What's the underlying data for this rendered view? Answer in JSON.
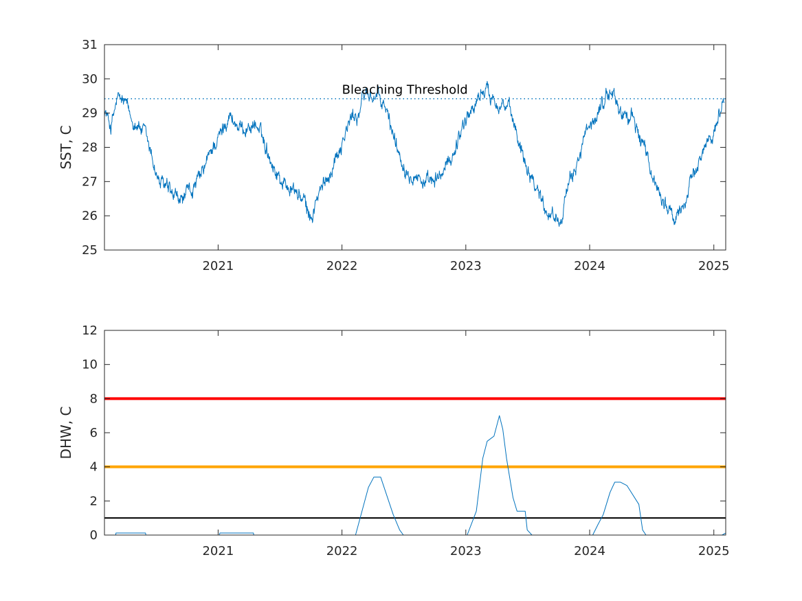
{
  "chart_data": [
    {
      "type": "line",
      "ylabel": "SST, C",
      "ylim": [
        25,
        31
      ],
      "yticks": [
        25,
        26,
        27,
        28,
        29,
        30,
        31
      ],
      "xlim": [
        "2020-02-01",
        "2025-02-05"
      ],
      "xticks": [
        "2021",
        "2022",
        "2023",
        "2024",
        "2025"
      ],
      "grid": false,
      "series_color": "#0072BD",
      "annotations": [
        {
          "text": "Bleaching Threshold",
          "y": 29.42,
          "x_start": "2022-01-01",
          "line_style": "dotted",
          "color": "#0072BD"
        }
      ],
      "series": [
        {
          "x": [
            "2020-02-01",
            "2020-02-20",
            "2020-03-10",
            "2020-04-01",
            "2020-04-20",
            "2020-05-10",
            "2020-06-01",
            "2020-06-20",
            "2020-07-10",
            "2020-08-01",
            "2020-08-20",
            "2020-09-10",
            "2020-10-01",
            "2020-10-20",
            "2020-11-10",
            "2020-12-01",
            "2020-12-20",
            "2021-01-10",
            "2021-02-01",
            "2021-02-20",
            "2021-03-10",
            "2021-04-01",
            "2021-04-20",
            "2021-05-10",
            "2021-06-01",
            "2021-06-20",
            "2021-07-10",
            "2021-08-01",
            "2021-08-20",
            "2021-09-10",
            "2021-10-01",
            "2021-10-20",
            "2021-11-10",
            "2021-12-01",
            "2021-12-20",
            "2022-01-10",
            "2022-02-01",
            "2022-02-20",
            "2022-03-10",
            "2022-04-01",
            "2022-04-20",
            "2022-05-10",
            "2022-06-01",
            "2022-06-20",
            "2022-07-10",
            "2022-08-01",
            "2022-08-20",
            "2022-09-10",
            "2022-10-01",
            "2022-10-20",
            "2022-11-10",
            "2022-12-01",
            "2022-12-20",
            "2023-01-10",
            "2023-02-01",
            "2023-02-20",
            "2023-03-10",
            "2023-04-01",
            "2023-04-20",
            "2023-05-10",
            "2023-06-01",
            "2023-06-20",
            "2023-07-10",
            "2023-08-01",
            "2023-08-20",
            "2023-09-10",
            "2023-10-01",
            "2023-10-20",
            "2023-11-10",
            "2023-12-01",
            "2023-12-20",
            "2024-01-10",
            "2024-02-01",
            "2024-02-20",
            "2024-03-10",
            "2024-04-01",
            "2024-04-20",
            "2024-05-10",
            "2024-06-01",
            "2024-06-20",
            "2024-07-10",
            "2024-08-01",
            "2024-08-20",
            "2024-09-10",
            "2024-10-01",
            "2024-10-20",
            "2024-11-10",
            "2024-12-01",
            "2024-12-20",
            "2025-01-10",
            "2025-02-01"
          ],
          "values": [
            29.1,
            28.6,
            29.4,
            29.3,
            28.8,
            28.7,
            28.3,
            27.7,
            27.0,
            26.8,
            26.5,
            26.4,
            26.6,
            26.8,
            27.1,
            27.6,
            28.1,
            28.4,
            29.0,
            28.7,
            28.5,
            28.6,
            28.7,
            28.3,
            27.8,
            27.3,
            27.0,
            26.8,
            26.7,
            26.4,
            25.9,
            26.5,
            26.9,
            27.4,
            27.9,
            28.4,
            28.9,
            29.0,
            29.6,
            29.5,
            29.4,
            29.1,
            28.4,
            27.8,
            27.4,
            27.3,
            27.1,
            26.9,
            26.9,
            27.2,
            27.5,
            28.0,
            28.6,
            29.0,
            29.3,
            29.7,
            29.6,
            29.4,
            29.3,
            29.0,
            28.4,
            27.8,
            27.3,
            26.8,
            26.3,
            26.1,
            25.9,
            26.4,
            27.1,
            27.8,
            28.3,
            28.6,
            29.2,
            29.5,
            29.6,
            29.0,
            28.9,
            28.8,
            28.2,
            27.6,
            27.0,
            26.6,
            26.2,
            25.8,
            26.3,
            26.8,
            27.3,
            27.9,
            28.4,
            28.7,
            29.4
          ]
        }
      ]
    },
    {
      "type": "line",
      "ylabel": "DHW, C",
      "ylim": [
        0,
        12
      ],
      "yticks": [
        0,
        2,
        4,
        6,
        8,
        10,
        12
      ],
      "xlim": [
        "2020-02-01",
        "2025-02-05"
      ],
      "xticks": [
        "2021",
        "2022",
        "2023",
        "2024",
        "2025"
      ],
      "grid": false,
      "series_color": "#0072BD",
      "reference_lines": [
        {
          "y": 8,
          "color": "#FF0000"
        },
        {
          "y": 4,
          "color": "#FFA500"
        },
        {
          "y": 1,
          "color": "#000000"
        }
      ],
      "series": [
        {
          "x": [
            "2020-02-01",
            "2020-03-05",
            "2020-03-06",
            "2020-06-01",
            "2020-06-02",
            "2021-01-05",
            "2021-01-06",
            "2021-04-15",
            "2021-04-16",
            "2022-02-10",
            "2022-03-01",
            "2022-03-20",
            "2022-04-05",
            "2022-04-25",
            "2022-06-01",
            "2022-06-20",
            "2022-07-01",
            "2022-07-15",
            "2023-01-05",
            "2023-02-01",
            "2023-02-20",
            "2023-03-05",
            "2023-03-25",
            "2023-04-10",
            "2023-04-20",
            "2023-05-01",
            "2023-05-20",
            "2023-06-01",
            "2023-06-25",
            "2023-07-01",
            "2023-07-15",
            "2024-01-10",
            "2024-01-25",
            "2024-02-10",
            "2024-03-01",
            "2024-03-15",
            "2024-04-01",
            "2024-04-20",
            "2024-05-25",
            "2024-06-05",
            "2024-06-15",
            "2025-01-25",
            "2025-02-05"
          ],
          "values": [
            0,
            0,
            0.12,
            0.12,
            0,
            0,
            0.12,
            0.12,
            0,
            0,
            1.4,
            2.8,
            3.4,
            3.4,
            1.2,
            0.3,
            0,
            0,
            0,
            1.4,
            4.5,
            5.5,
            5.8,
            7.0,
            6.2,
            4.5,
            2.2,
            1.4,
            1.4,
            0.3,
            0,
            0,
            0.6,
            1.2,
            2.5,
            3.1,
            3.1,
            2.9,
            1.8,
            0.3,
            0,
            0,
            0.12
          ]
        }
      ]
    }
  ]
}
